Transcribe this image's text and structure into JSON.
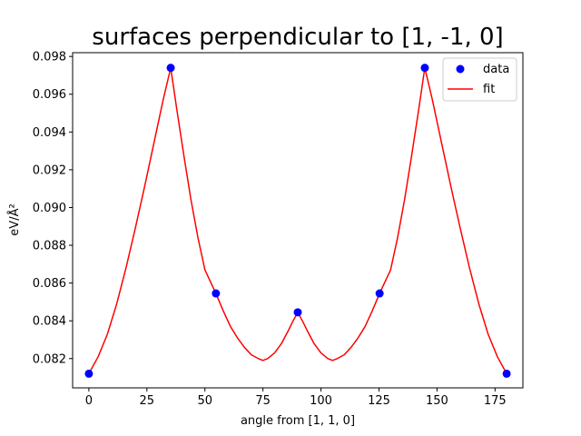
{
  "chart_data": {
    "type": "scatter",
    "title": "surfaces perpendicular to [1, -1, 0]",
    "xlabel": "angle from [1, 1, 0]",
    "ylabel": "eV/Å²",
    "xlim": [
      -7,
      187
    ],
    "ylim": [
      0.08045,
      0.0982
    ],
    "xticks": [
      0,
      25,
      50,
      75,
      100,
      125,
      150,
      175
    ],
    "yticks": [
      0.082,
      0.084,
      0.086,
      0.088,
      0.09,
      0.092,
      0.094,
      0.096,
      0.098
    ],
    "grid": false,
    "legend": "top-right",
    "series": [
      {
        "name": "data",
        "kind": "markers",
        "color": "#0000ff",
        "x": [
          0,
          35.26,
          54.74,
          90,
          125.26,
          144.74,
          180
        ],
        "y": [
          0.0812,
          0.0974,
          0.08545,
          0.08445,
          0.08545,
          0.0974,
          0.0812
        ]
      },
      {
        "name": "fit",
        "kind": "line",
        "color": "#ff0000",
        "x": [
          0,
          4,
          8,
          12,
          16,
          20,
          24,
          28,
          32,
          35.26,
          38,
          41,
          44,
          47,
          50,
          54.74,
          58,
          61,
          64,
          67,
          70,
          73,
          75,
          77,
          80,
          83,
          86,
          88,
          90,
          92,
          94,
          97,
          100,
          103,
          105,
          107,
          110,
          113,
          116,
          119,
          122,
          125.26,
          130,
          133,
          136,
          139,
          142,
          144.74,
          148,
          152,
          156,
          160,
          164,
          168,
          172,
          176,
          180
        ],
        "y": [
          0.0812,
          0.0821,
          0.0833,
          0.0849,
          0.0868,
          0.0889,
          0.0911,
          0.0934,
          0.0957,
          0.0974,
          0.0951,
          0.0927,
          0.0904,
          0.0884,
          0.0867,
          0.08545,
          0.0845,
          0.0837,
          0.0831,
          0.0826,
          0.0822,
          0.082,
          0.0819,
          0.082,
          0.0823,
          0.0828,
          0.0835,
          0.084,
          0.08445,
          0.084,
          0.0835,
          0.0828,
          0.0823,
          0.082,
          0.0819,
          0.082,
          0.0822,
          0.0826,
          0.0831,
          0.0837,
          0.0845,
          0.08545,
          0.0867,
          0.0884,
          0.0904,
          0.0927,
          0.0951,
          0.0974,
          0.0957,
          0.0934,
          0.0911,
          0.0889,
          0.0868,
          0.0849,
          0.0833,
          0.0821,
          0.0812
        ]
      }
    ]
  }
}
